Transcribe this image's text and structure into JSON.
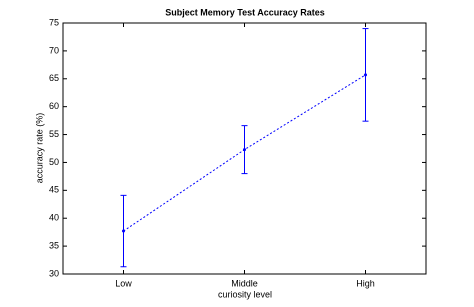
{
  "chart_data": {
    "type": "errorbar-line",
    "title": "Subject Memory Test Accuracy Rates",
    "x_label": "curiosity level",
    "y_label": "accuracy rate (%)",
    "categories": [
      "Low",
      "Middle",
      "High"
    ],
    "values": [
      37.7,
      52.3,
      65.7
    ],
    "errors": [
      6.4,
      4.3,
      8.3
    ],
    "color": "#0000ff",
    "ylim": [
      30,
      75
    ],
    "yticks": [
      30,
      35,
      40,
      45,
      50,
      55,
      60,
      65,
      70,
      75
    ]
  }
}
